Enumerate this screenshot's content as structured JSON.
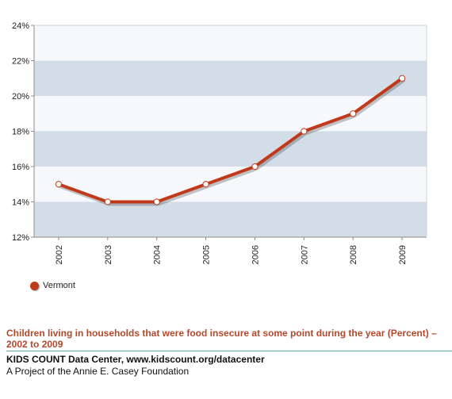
{
  "chart_data": {
    "type": "line",
    "x": [
      "2002",
      "2003",
      "2004",
      "2005",
      "2006",
      "2007",
      "2008",
      "2009"
    ],
    "series": [
      {
        "name": "Vermont",
        "values": [
          15,
          14,
          14,
          15,
          16,
          18,
          19,
          21
        ]
      }
    ],
    "y_ticks": [
      "12%",
      "14%",
      "16%",
      "18%",
      "20%",
      "22%",
      "24%"
    ],
    "ylim": [
      12,
      24
    ],
    "grid": "alternating horizontal bands",
    "legend_position": "bottom-left",
    "colors": {
      "line": "#c0391b",
      "band_dark": "#d3dde7",
      "band_light": "#f6f8fb",
      "marker_fill": "#ffffff"
    }
  },
  "caption": "Children living in households that were food insecure at some point during the year (Percent) – 2002 to 2009",
  "source": "KIDS COUNT Data Center, www.kidscount.org/datacenter",
  "credit": "A Project of the Annie E. Casey Foundation"
}
